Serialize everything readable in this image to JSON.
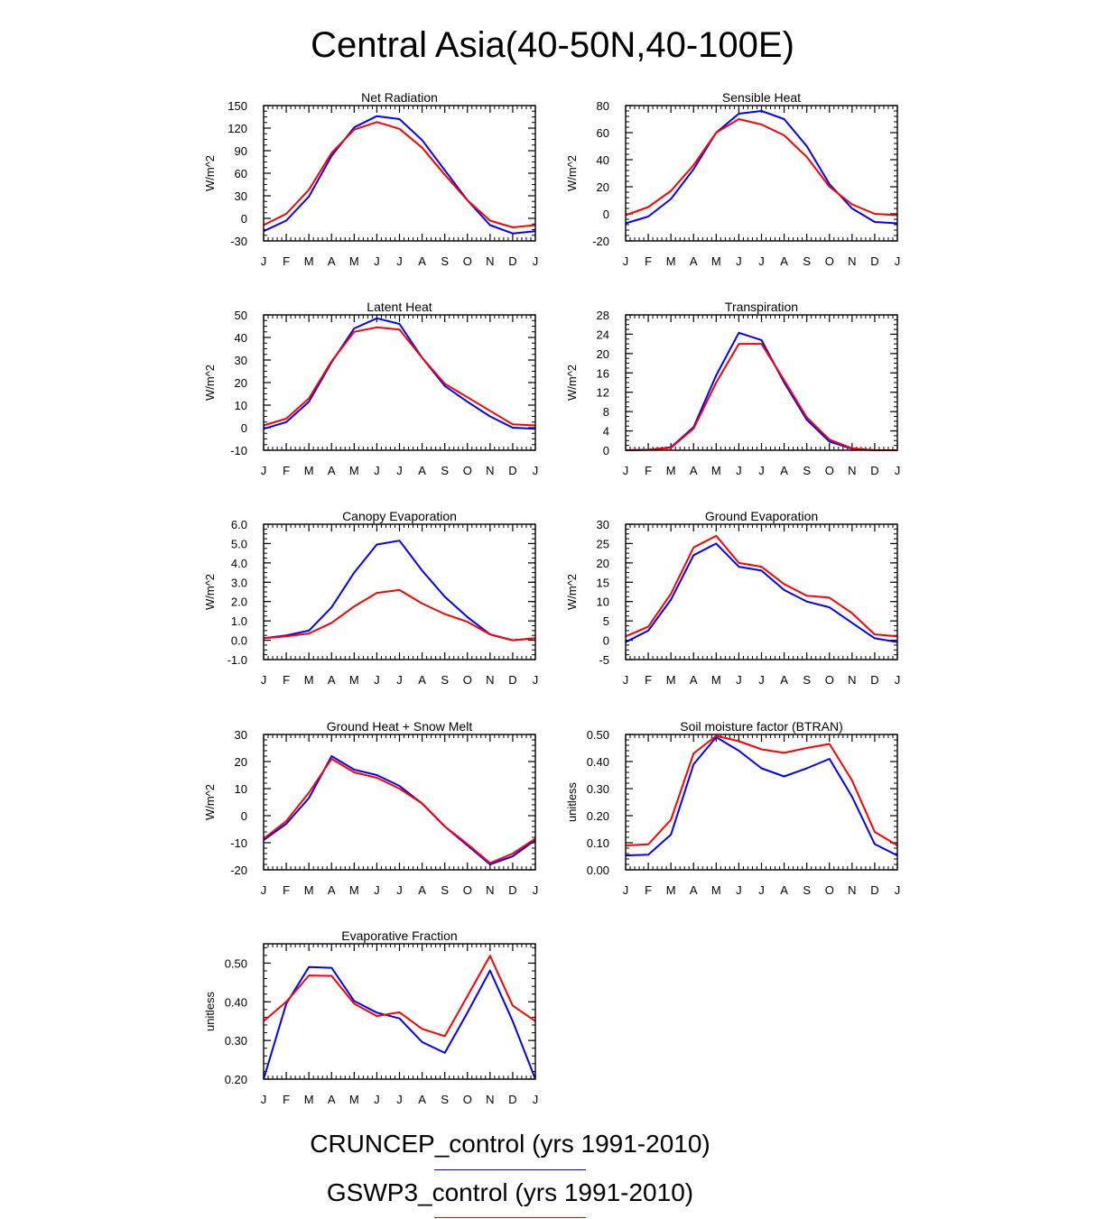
{
  "title": "Central Asia(40-50N,40-100E)",
  "legend": [
    {
      "label": "CRUNCEP_control (yrs 1991-2010)",
      "color": "#0000ff"
    },
    {
      "label": "GSWP3_control (yrs 1991-2010)",
      "color": "#ff0000"
    }
  ],
  "chart_data": [
    {
      "type": "line",
      "title": "Net Radiation",
      "ylabel": "W/m^2",
      "categories": [
        "J",
        "F",
        "M",
        "A",
        "M",
        "J",
        "J",
        "A",
        "S",
        "O",
        "N",
        "D",
        "J"
      ],
      "ylim": [
        -30,
        150
      ],
      "yticks": [
        -30,
        0,
        30,
        60,
        90,
        120,
        150
      ],
      "ytick_labels": [
        "-30",
        "0",
        "30",
        "60",
        "90",
        "120",
        "150"
      ],
      "series": [
        {
          "name": "CRUNCEP_control",
          "color": "#0000ff",
          "values": [
            -17,
            -3,
            29,
            83,
            121,
            136,
            132,
            104,
            64,
            24,
            -9,
            -20,
            -17
          ]
        },
        {
          "name": "GSWP3_control",
          "color": "#ff0000",
          "values": [
            -9,
            6,
            38,
            87,
            118,
            128,
            119,
            94,
            58,
            24,
            -3,
            -12,
            -9
          ]
        }
      ]
    },
    {
      "type": "line",
      "title": "Sensible Heat",
      "ylabel": "W/m^2",
      "categories": [
        "J",
        "F",
        "M",
        "A",
        "M",
        "J",
        "J",
        "A",
        "S",
        "O",
        "N",
        "D",
        "J"
      ],
      "ylim": [
        -20,
        80
      ],
      "yticks": [
        -20,
        0,
        20,
        40,
        60,
        80
      ],
      "ytick_labels": [
        "-20",
        "0",
        "20",
        "40",
        "60",
        "80"
      ],
      "series": [
        {
          "name": "CRUNCEP_control",
          "color": "#0000ff",
          "values": [
            -7,
            -2,
            11,
            33,
            60,
            74,
            76,
            70,
            50,
            22,
            4,
            -6,
            -7
          ]
        },
        {
          "name": "GSWP3_control",
          "color": "#ff0000",
          "values": [
            -1,
            5,
            17,
            36,
            60,
            70,
            66,
            58,
            42,
            20,
            7,
            0,
            -1
          ]
        }
      ]
    },
    {
      "type": "line",
      "title": "Latent Heat",
      "ylabel": "W/m^2",
      "categories": [
        "J",
        "F",
        "M",
        "A",
        "M",
        "J",
        "J",
        "A",
        "S",
        "O",
        "N",
        "D",
        "J"
      ],
      "ylim": [
        -10,
        50
      ],
      "yticks": [
        -10,
        0,
        10,
        20,
        30,
        40,
        50
      ],
      "ytick_labels": [
        "-10",
        "0",
        "10",
        "20",
        "30",
        "40",
        "50"
      ],
      "series": [
        {
          "name": "CRUNCEP_control",
          "color": "#0000ff",
          "values": [
            -0.5,
            2.5,
            11.5,
            29,
            44,
            48.5,
            46,
            31,
            18.5,
            11.5,
            5,
            0,
            -0.5
          ]
        },
        {
          "name": "GSWP3_control",
          "color": "#ff0000",
          "values": [
            1,
            4,
            13,
            29.5,
            42.5,
            44.5,
            43.5,
            31,
            19.5,
            13.5,
            7.5,
            1.5,
            1
          ]
        }
      ]
    },
    {
      "type": "line",
      "title": "Transpiration",
      "ylabel": "W/m^2",
      "categories": [
        "J",
        "F",
        "M",
        "A",
        "M",
        "J",
        "J",
        "A",
        "S",
        "O",
        "N",
        "D",
        "J"
      ],
      "ylim": [
        0,
        28
      ],
      "yticks": [
        0,
        4,
        8,
        12,
        16,
        20,
        24,
        28
      ],
      "ytick_labels": [
        "0",
        "4",
        "8",
        "12",
        "16",
        "20",
        "24",
        "28"
      ],
      "series": [
        {
          "name": "CRUNCEP_control",
          "color": "#0000ff",
          "values": [
            0,
            0.1,
            0.6,
            4.8,
            15.5,
            24.3,
            22.8,
            14,
            6.3,
            1.8,
            0.3,
            0,
            0
          ]
        },
        {
          "name": "GSWP3_control",
          "color": "#ff0000",
          "values": [
            0,
            0.1,
            0.5,
            4.5,
            14,
            22,
            22,
            14.5,
            6.8,
            2.2,
            0.4,
            0,
            0
          ]
        }
      ]
    },
    {
      "type": "line",
      "title": "Canopy Evaporation",
      "ylabel": "W/m^2",
      "categories": [
        "J",
        "F",
        "M",
        "A",
        "M",
        "J",
        "J",
        "A",
        "S",
        "O",
        "N",
        "D",
        "J"
      ],
      "ylim": [
        -1,
        6
      ],
      "yticks": [
        -1,
        0,
        1,
        2,
        3,
        4,
        5,
        6
      ],
      "ytick_labels": [
        "-1.0",
        "0.0",
        "1.0",
        "2.0",
        "3.0",
        "4.0",
        "5.0",
        "6.0"
      ],
      "series": [
        {
          "name": "CRUNCEP_control",
          "color": "#0000ff",
          "values": [
            0.1,
            0.25,
            0.5,
            1.7,
            3.5,
            4.95,
            5.15,
            3.6,
            2.25,
            1.2,
            0.3,
            0,
            0.1
          ]
        },
        {
          "name": "GSWP3_control",
          "color": "#ff0000",
          "values": [
            0.1,
            0.2,
            0.35,
            0.9,
            1.75,
            2.45,
            2.6,
            1.9,
            1.35,
            0.95,
            0.3,
            0,
            0.1
          ]
        }
      ]
    },
    {
      "type": "line",
      "title": "Ground Evaporation",
      "ylabel": "W/m^2",
      "categories": [
        "J",
        "F",
        "M",
        "A",
        "M",
        "J",
        "J",
        "A",
        "S",
        "O",
        "N",
        "D",
        "J"
      ],
      "ylim": [
        -5,
        30
      ],
      "yticks": [
        -5,
        0,
        5,
        10,
        15,
        20,
        25,
        30
      ],
      "ytick_labels": [
        "-5",
        "0",
        "5",
        "10",
        "15",
        "20",
        "25",
        "30"
      ],
      "series": [
        {
          "name": "CRUNCEP_control",
          "color": "#0000ff",
          "values": [
            -0.5,
            2.5,
            10.5,
            22,
            25,
            19,
            18,
            13,
            10,
            8.5,
            4.5,
            0.5,
            -0.5
          ]
        },
        {
          "name": "GSWP3_control",
          "color": "#ff0000",
          "values": [
            1,
            3.5,
            12,
            24,
            27,
            20,
            19,
            14.5,
            11.5,
            11,
            7,
            1.5,
            1
          ]
        }
      ]
    },
    {
      "type": "line",
      "title": "Ground Heat + Snow Melt",
      "ylabel": "W/m^2",
      "categories": [
        "J",
        "F",
        "M",
        "A",
        "M",
        "J",
        "J",
        "A",
        "S",
        "O",
        "N",
        "D",
        "J"
      ],
      "ylim": [
        -20,
        30
      ],
      "yticks": [
        -20,
        -10,
        0,
        10,
        20,
        30
      ],
      "ytick_labels": [
        "-20",
        "-10",
        "0",
        "10",
        "20",
        "30"
      ],
      "series": [
        {
          "name": "CRUNCEP_control",
          "color": "#0000ff",
          "values": [
            -9,
            -3,
            6.5,
            22,
            17,
            15,
            11,
            4.5,
            -4,
            -11,
            -18,
            -15,
            -9
          ]
        },
        {
          "name": "GSWP3_control",
          "color": "#ff0000",
          "values": [
            -8.5,
            -2,
            8.5,
            21,
            16,
            14,
            10,
            4.5,
            -4,
            -10.5,
            -17.5,
            -14,
            -8.5
          ]
        }
      ]
    },
    {
      "type": "line",
      "title": "Soil moisture factor (BTRAN)",
      "ylabel": "unitless",
      "categories": [
        "J",
        "F",
        "M",
        "A",
        "M",
        "J",
        "J",
        "A",
        "S",
        "O",
        "N",
        "D",
        "J"
      ],
      "ylim": [
        0,
        0.5
      ],
      "yticks": [
        0,
        0.1,
        0.2,
        0.3,
        0.4,
        0.5
      ],
      "ytick_labels": [
        "0.00",
        "0.10",
        "0.20",
        "0.30",
        "0.40",
        "0.50"
      ],
      "series": [
        {
          "name": "CRUNCEP_control",
          "color": "#0000ff",
          "values": [
            0.053,
            0.056,
            0.13,
            0.39,
            0.49,
            0.44,
            0.375,
            0.345,
            0.375,
            0.41,
            0.27,
            0.095,
            0.053
          ]
        },
        {
          "name": "GSWP3_control",
          "color": "#ff0000",
          "values": [
            0.09,
            0.094,
            0.185,
            0.43,
            0.495,
            0.475,
            0.445,
            0.432,
            0.45,
            0.465,
            0.33,
            0.14,
            0.09
          ]
        }
      ]
    },
    {
      "type": "line",
      "title": "Evaporative Fraction",
      "ylabel": "unitless",
      "categories": [
        "J",
        "F",
        "M",
        "A",
        "M",
        "J",
        "J",
        "A",
        "S",
        "O",
        "N",
        "D",
        "J"
      ],
      "ylim": [
        0.2,
        0.55
      ],
      "yticks": [
        0.2,
        0.3,
        0.4,
        0.5
      ],
      "ytick_labels": [
        "0.20",
        "0.30",
        "0.40",
        "0.50"
      ],
      "series": [
        {
          "name": "CRUNCEP_control",
          "color": "#0000ff",
          "values": [
            0.2,
            0.395,
            0.49,
            0.488,
            0.402,
            0.372,
            0.357,
            0.296,
            0.268,
            0.372,
            0.481,
            0.35,
            0.2
          ]
        },
        {
          "name": "GSWP3_control",
          "color": "#ff0000",
          "values": [
            0.35,
            0.4,
            0.468,
            0.467,
            0.395,
            0.363,
            0.373,
            0.33,
            0.311,
            0.415,
            0.519,
            0.39,
            0.35
          ]
        }
      ]
    }
  ]
}
